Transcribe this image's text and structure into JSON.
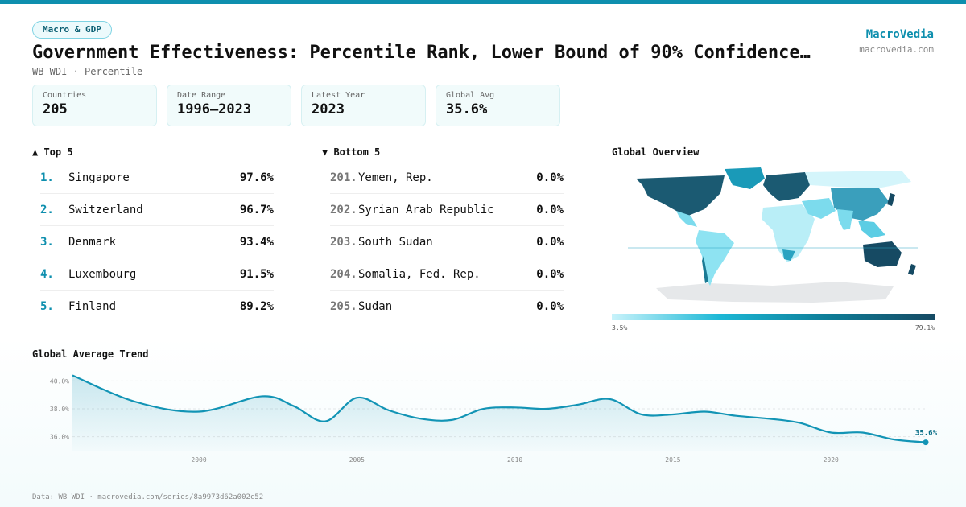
{
  "badge": "Macro & GDP",
  "title": "Government Effectiveness: Percentile Rank, Lower Bound of 90% Confidence…",
  "subtitle": "WB WDI · Percentile",
  "brand": {
    "name": "MacroVedia",
    "url": "macrovedia.com"
  },
  "stats": [
    {
      "label": "Countries",
      "value": "205"
    },
    {
      "label": "Date Range",
      "value": "1996–2023"
    },
    {
      "label": "Latest Year",
      "value": "2023"
    },
    {
      "label": "Global Avg",
      "value": "35.6%"
    }
  ],
  "top5": {
    "heading": "▲ Top 5",
    "items": [
      {
        "rank": "1.",
        "name": "Singapore",
        "value": "97.6%"
      },
      {
        "rank": "2.",
        "name": "Switzerland",
        "value": "96.7%"
      },
      {
        "rank": "3.",
        "name": "Denmark",
        "value": "93.4%"
      },
      {
        "rank": "4.",
        "name": "Luxembourg",
        "value": "91.5%"
      },
      {
        "rank": "5.",
        "name": "Finland",
        "value": "89.2%"
      }
    ]
  },
  "bottom5": {
    "heading": "▼ Bottom 5",
    "items": [
      {
        "rank": "201.",
        "name": "Yemen, Rep.",
        "value": "0.0%"
      },
      {
        "rank": "202.",
        "name": "Syrian Arab Republic",
        "value": "0.0%"
      },
      {
        "rank": "203.",
        "name": "South Sudan",
        "value": "0.0%"
      },
      {
        "rank": "204.",
        "name": "Somalia, Fed. Rep.",
        "value": "0.0%"
      },
      {
        "rank": "205.",
        "name": "Sudan",
        "value": "0.0%"
      }
    ]
  },
  "map": {
    "heading": "Global Overview",
    "legend_min": "3.5%",
    "legend_max": "79.1%",
    "colors": {
      "low": "#c9f3fb",
      "mid": "#1cb8d6",
      "high": "#164a63",
      "nodata": "#e6e8ea"
    }
  },
  "trend_heading": "Global Average Trend",
  "footer": "Data: WB WDI · macrovedia.com/series/8a9973d62a002c52",
  "colors": {
    "accent": "#0e8fae",
    "line": "#1294b5"
  },
  "chart_data": {
    "type": "area",
    "x": [
      1996,
      1998,
      2000,
      2002,
      2003,
      2004,
      2005,
      2006,
      2007,
      2008,
      2009,
      2010,
      2011,
      2012,
      2013,
      2014,
      2015,
      2016,
      2017,
      2018,
      2019,
      2020,
      2021,
      2022,
      2023
    ],
    "values": [
      40.4,
      38.5,
      37.8,
      38.9,
      38.2,
      37.1,
      38.8,
      37.9,
      37.3,
      37.2,
      38.0,
      38.1,
      38.0,
      38.3,
      38.7,
      37.6,
      37.6,
      37.8,
      37.5,
      37.3,
      37.0,
      36.3,
      36.3,
      35.8,
      35.6
    ],
    "y_ticks": [
      "36.0%",
      "38.0%",
      "40.0%"
    ],
    "y_tick_values": [
      36,
      38,
      40
    ],
    "x_ticks": [
      "2000",
      "2005",
      "2010",
      "2015",
      "2020"
    ],
    "x_tick_values": [
      2000,
      2005,
      2010,
      2015,
      2020
    ],
    "xlim": [
      1996,
      2023
    ],
    "ylim": [
      35.0,
      40.6
    ],
    "end_label": "35.6%",
    "grid": true
  }
}
